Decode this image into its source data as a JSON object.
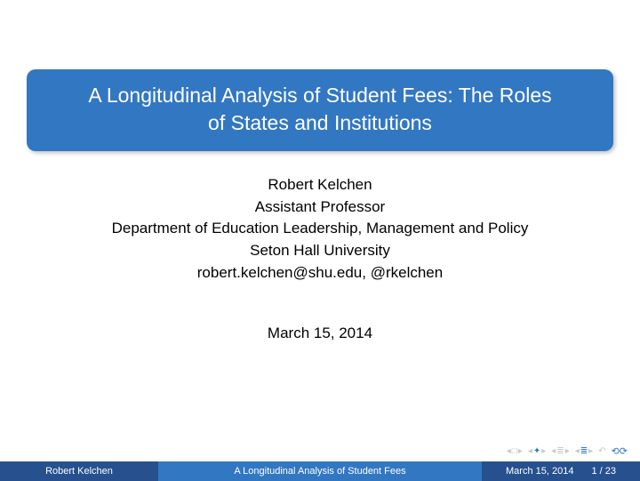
{
  "title": {
    "line1": "A Longitudinal Analysis of Student Fees: The Roles",
    "line2": "of States and Institutions"
  },
  "author": {
    "name": "Robert Kelchen",
    "role": "Assistant Professor",
    "department": "Department of Education Leadership, Management and Policy",
    "institution": "Seton Hall University",
    "contact": "robert.kelchen@shu.edu, @rkelchen"
  },
  "date": "March 15, 2014",
  "footer": {
    "author": "Robert Kelchen",
    "short_title": "A Longitudinal Analysis of Student Fees",
    "date": "March 15, 2014",
    "page": "1 / 23"
  },
  "colors": {
    "primary": "#3277c2",
    "footer_dark": "#27508f",
    "text": "#000000",
    "background": "#ffffff"
  }
}
